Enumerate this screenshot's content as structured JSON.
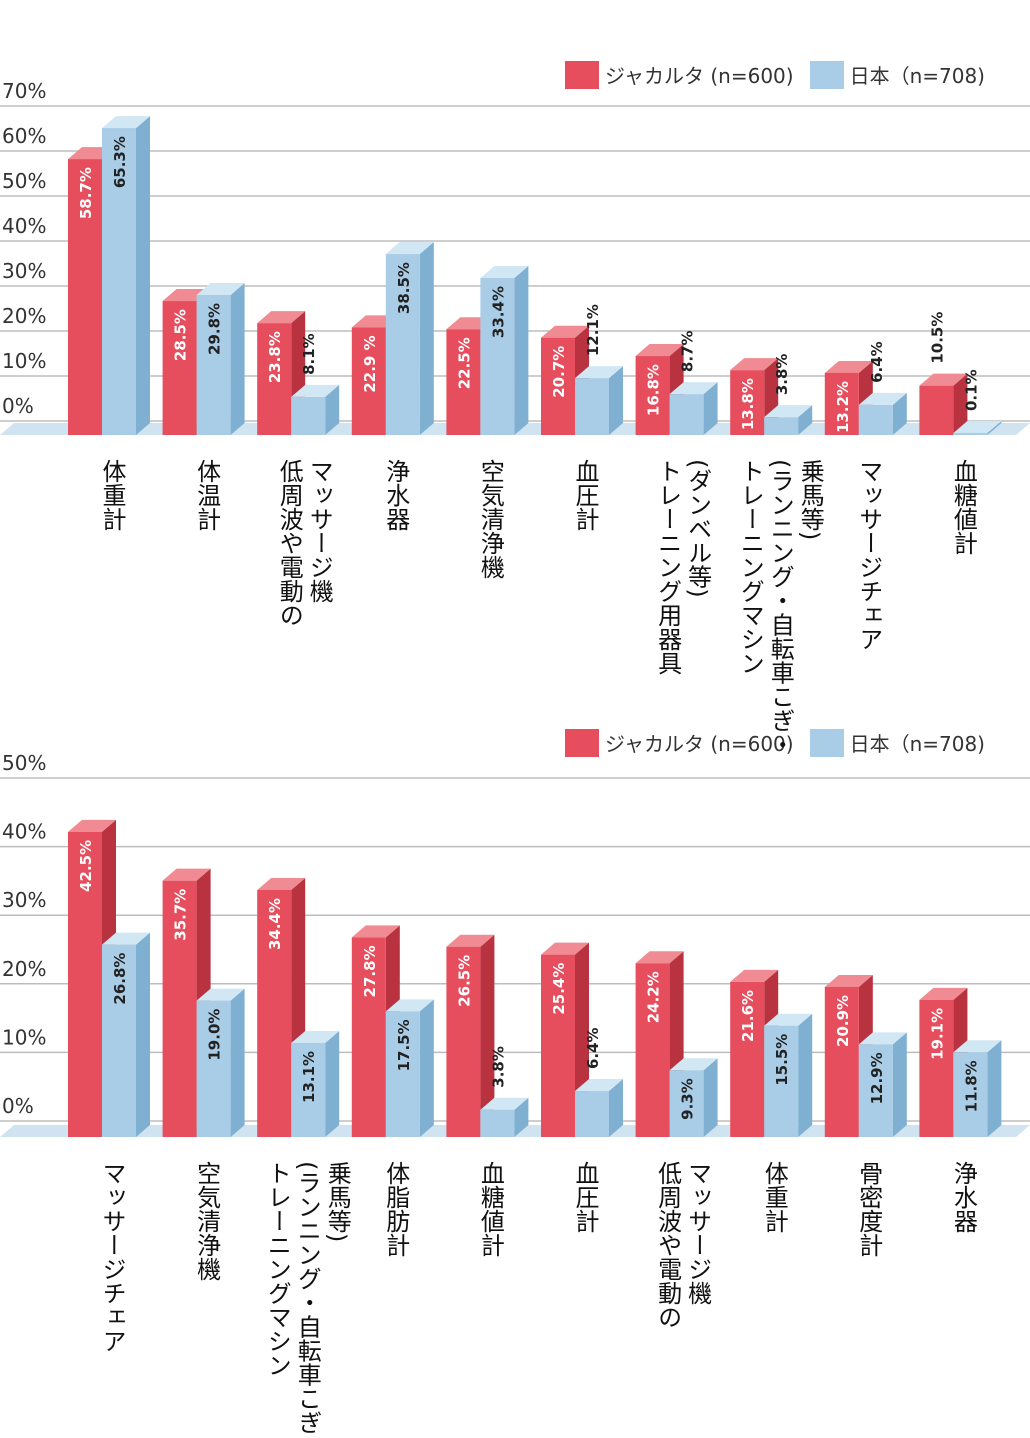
{
  "colors": {
    "jakarta": "#e64d5d",
    "jakarta_side": "#b8323f",
    "jakarta_top": "#f08a93",
    "japan": "#a9cde6",
    "japan_side": "#7fb0d2",
    "japan_top": "#d2e7f4",
    "grid": "#bdbdbd",
    "floor": "#cfe3f0"
  },
  "chart_data": [
    {
      "type": "bar",
      "title": "",
      "ylim": [
        0,
        70
      ],
      "yticks": [
        "70%",
        "60%",
        "50%",
        "40%",
        "30%",
        "20%",
        "10%",
        "0%"
      ],
      "legend": {
        "placement": "top-right"
      },
      "categories": [
        [
          "体重計"
        ],
        [
          "体温計"
        ],
        [
          "マッサージ機",
          "低周波や電動の"
        ],
        [
          "浄水器"
        ],
        [
          "空気清浄機"
        ],
        [
          "血圧計"
        ],
        [
          "(ダンベル等)",
          "トレーニング用器具"
        ],
        [
          "乗馬等)",
          "(ランニング・自転車こぎ・",
          "トレーニングマシン"
        ],
        [
          "マッサージチェア"
        ],
        [
          "血糖値計"
        ]
      ],
      "series": [
        {
          "name": "ジャカルタ (n=600)",
          "values": [
            58.7,
            28.5,
            23.8,
            22.9,
            22.5,
            20.7,
            16.8,
            13.8,
            13.2,
            10.5
          ],
          "labels": [
            "58.7%",
            "28.5%",
            "23.8%",
            "22.9 %",
            "22.5%",
            "20.7%",
            "16.8%",
            "13.8%",
            "13.2%",
            "10.5%"
          ]
        },
        {
          "name": "日本（n=708)",
          "values": [
            65.3,
            29.8,
            8.1,
            38.5,
            33.4,
            12.1,
            8.7,
            3.8,
            6.4,
            0.1
          ],
          "labels": [
            "65.3%",
            "29.8%",
            "8.1%",
            "38.5%",
            "33.4%",
            "12.1%",
            "8.7%",
            "3.8%",
            "6.4%",
            "0.1%"
          ]
        }
      ]
    },
    {
      "type": "bar",
      "title": "",
      "ylim": [
        0,
        50
      ],
      "yticks": [
        "50%",
        "40%",
        "30%",
        "20%",
        "10%",
        "0%"
      ],
      "legend": {
        "placement": "top-right"
      },
      "categories": [
        [
          "マッサージチェア"
        ],
        [
          "空気清浄機"
        ],
        [
          "乗馬等)",
          "(ランニング・自転車こぎ・",
          "トレーニングマシン"
        ],
        [
          "体脂肪計"
        ],
        [
          "血糖値計"
        ],
        [
          "血圧計"
        ],
        [
          "マッサージ機",
          "低周波や電動の"
        ],
        [
          "体重計"
        ],
        [
          "骨密度計"
        ],
        [
          "浄水器"
        ]
      ],
      "series": [
        {
          "name": "ジャカルタ (n=600)",
          "values": [
            42.5,
            35.7,
            34.4,
            27.8,
            26.5,
            25.4,
            24.2,
            21.6,
            20.9,
            19.1
          ],
          "labels": [
            "42.5%",
            "35.7%",
            "34.4%",
            "27.8%",
            "26.5%",
            "25.4%",
            "24.2%",
            "21.6%",
            "20.9%",
            "19.1%"
          ]
        },
        {
          "name": "日本（n=708)",
          "values": [
            26.8,
            19.0,
            13.1,
            17.5,
            3.8,
            6.4,
            9.3,
            15.5,
            12.9,
            11.8
          ],
          "labels": [
            "26.8%",
            "19.0%",
            "13.1%",
            "17.5%",
            "3.8%",
            "6.4%",
            "9.3%",
            "15.5%",
            "12.9%",
            "11.8%"
          ]
        }
      ]
    }
  ]
}
